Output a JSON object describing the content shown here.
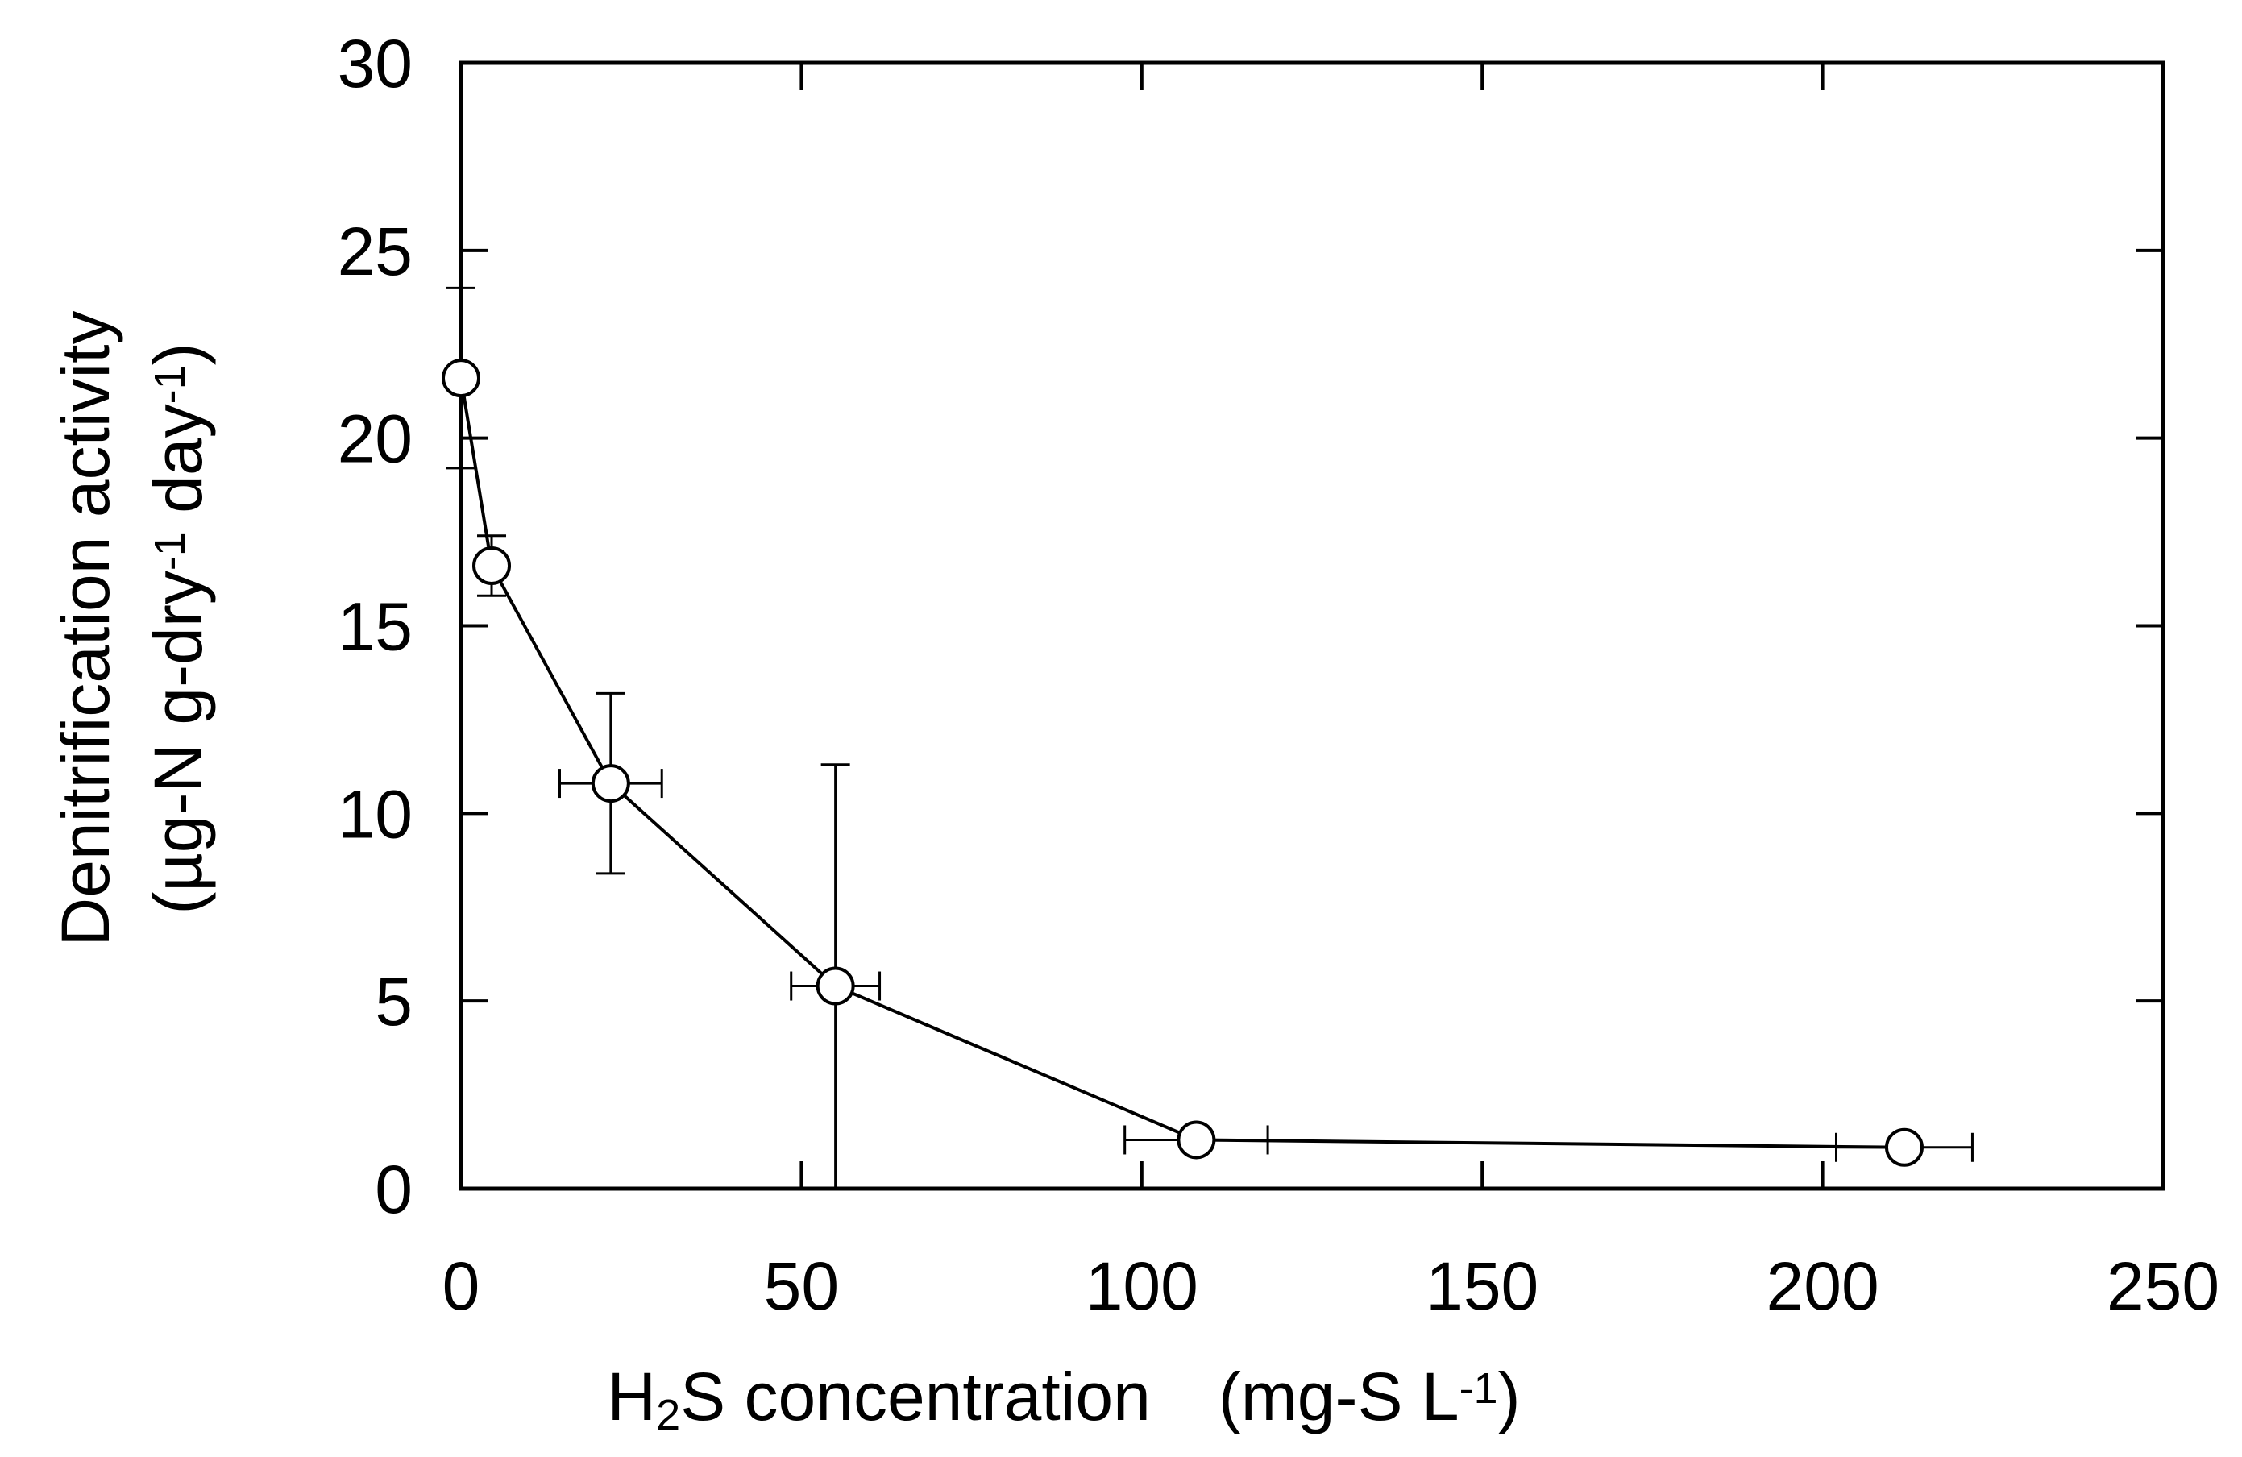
{
  "chart_data": {
    "type": "scatter",
    "title": "",
    "xlabel": {
      "parts": [
        {
          "text": "H",
          "style": "normal"
        },
        {
          "text": "2",
          "style": "sub"
        },
        {
          "text": "S concentration　(mg-S L",
          "style": "normal"
        },
        {
          "text": "-1",
          "style": "sup"
        },
        {
          "text": ")",
          "style": "normal"
        }
      ]
    },
    "ylabel": {
      "line1": [
        {
          "text": "Denitrification activity",
          "style": "normal"
        }
      ],
      "line2": [
        {
          "text": "(µg-N g-dry",
          "style": "normal"
        },
        {
          "text": "-1",
          "style": "sup"
        },
        {
          "text": " day",
          "style": "normal"
        },
        {
          "text": "-1",
          "style": "sup"
        },
        {
          "text": ")",
          "style": "normal"
        }
      ]
    },
    "xlim": [
      0,
      250
    ],
    "ylim": [
      0,
      30
    ],
    "x_ticks": [
      0,
      50,
      100,
      150,
      200,
      250
    ],
    "y_ticks": [
      0,
      5,
      10,
      15,
      20,
      25,
      30
    ],
    "x_tick_labels": [
      "0",
      "50",
      "100",
      "150",
      "200",
      "250"
    ],
    "y_tick_labels": [
      "0",
      "5",
      "10",
      "15",
      "20",
      "25",
      "30"
    ],
    "grid": false,
    "legend": "none",
    "connected": true,
    "marker": "open-circle",
    "points": [
      {
        "x": 0,
        "y": 21.6,
        "x_err": 0,
        "y_err": 2.4
      },
      {
        "x": 4.5,
        "y": 16.6,
        "x_err": 0,
        "y_err": 0.8
      },
      {
        "x": 22,
        "y": 10.8,
        "x_err": 7.5,
        "y_err": 2.4
      },
      {
        "x": 55,
        "y": 5.4,
        "x_err": 6.5,
        "y_err": 5.9
      },
      {
        "x": 108,
        "y": 1.3,
        "x_err": 10.5,
        "y_err": 0
      },
      {
        "x": 212,
        "y": 1.1,
        "x_err": 10,
        "y_err": 0
      }
    ]
  }
}
